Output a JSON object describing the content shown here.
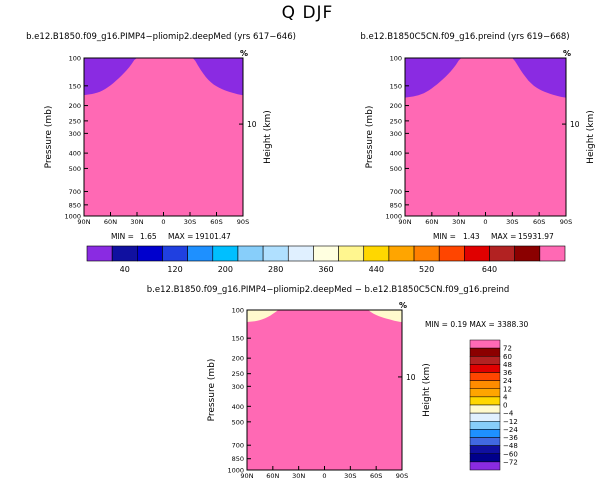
{
  "main_title": "Q DJF",
  "chart_data": [
    {
      "type": "contour",
      "title": "b.e12.B1850.f09_g16.PIMP4−pliomip2.deepMed (yrs 617−646)",
      "ylabel": "Pressure (mb)",
      "ylabel_right": "Height (km)",
      "right_unit_label": "%",
      "right_tick_label": "10",
      "x_ticks": [
        "90N",
        "60N",
        "30N",
        "0",
        "30S",
        "60S",
        "90S"
      ],
      "y_ticks": [
        "100",
        "150",
        "200",
        "250",
        "300",
        "400",
        "500",
        "700",
        "850",
        "1000"
      ],
      "stats": {
        "min_label": "MIN =",
        "min": "1.65",
        "max_label": "MAX =",
        "max": "19101.47"
      },
      "tropopause_peak_mb": 175
    },
    {
      "type": "contour",
      "title": "b.e12.B1850C5CN.f09_g16.preind (yrs 619−668)",
      "ylabel": "Pressure (mb)",
      "ylabel_right": "Height (km)",
      "right_unit_label": "%",
      "right_tick_label": "10",
      "x_ticks": [
        "90N",
        "60N",
        "30N",
        "0",
        "30S",
        "60S",
        "90S"
      ],
      "y_ticks": [
        "100",
        "150",
        "200",
        "250",
        "300",
        "400",
        "500",
        "700",
        "850",
        "1000"
      ],
      "stats": {
        "min_label": "MIN =",
        "min": "1.43",
        "max_label": "MAX =",
        "max": "15931.97"
      },
      "tropopause_peak_mb": 200
    },
    {
      "type": "contour",
      "title": "b.e12.B1850.f09_g16.PIMP4−pliomip2.deepMed − b.e12.B1850C5CN.f09_g16.preind",
      "ylabel": "Pressure (mb)",
      "ylabel_right": "Height (km)",
      "right_unit_label": "%",
      "right_tick_label": "10",
      "x_ticks": [
        "90N",
        "60N",
        "30N",
        "0",
        "30S",
        "60S",
        "90S"
      ],
      "y_ticks": [
        "100",
        "150",
        "200",
        "250",
        "300",
        "400",
        "500",
        "700",
        "850",
        "1000"
      ],
      "stats": {
        "text": "MIN =    0.19  MAX = 3388.30"
      }
    }
  ],
  "colorbar_top": {
    "labels": [
      "40",
      "120",
      "200",
      "280",
      "360",
      "440",
      "520",
      "640"
    ],
    "colors": [
      "#8a2be2",
      "#1010a0",
      "#0000cd",
      "#2040e0",
      "#1e90ff",
      "#00bfff",
      "#87cefa",
      "#b0e0ff",
      "#e0f0ff",
      "#ffffe0",
      "#fff68f",
      "#ffd700",
      "#ffa500",
      "#ff7f00",
      "#ff4500",
      "#e00000",
      "#b22222",
      "#8b0000",
      "#ff69b4"
    ]
  },
  "colorbar_diff": {
    "labels": [
      "72",
      "60",
      "48",
      "36",
      "24",
      "12",
      "4",
      "0",
      "−4",
      "−12",
      "−24",
      "−36",
      "−48",
      "−60",
      "−72"
    ],
    "colors": [
      "#ff69b4",
      "#8b0000",
      "#b22222",
      "#e00000",
      "#ff4500",
      "#ff8c00",
      "#ffa500",
      "#ffd700",
      "#fffacd",
      "#e0f0ff",
      "#87cefa",
      "#1e90ff",
      "#4169e1",
      "#1010a0",
      "#00008b",
      "#8a2be2"
    ]
  }
}
